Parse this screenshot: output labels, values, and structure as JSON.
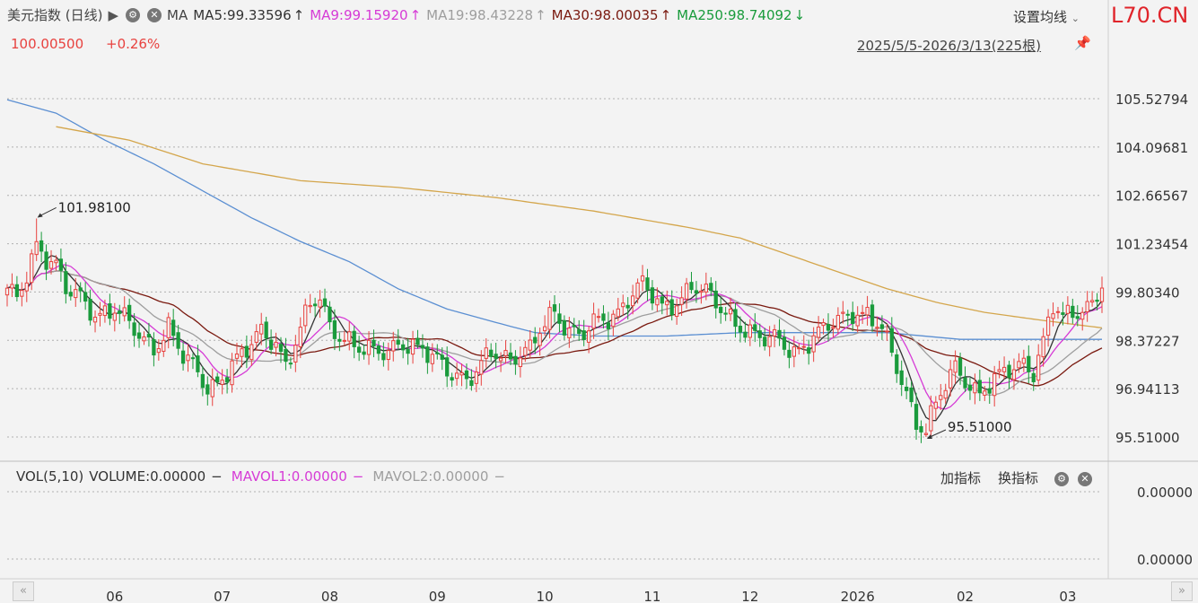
{
  "header": {
    "instrument": "美元指数 (日线)",
    "play_glyph": "▶",
    "ma_label": "MA",
    "ma5": "MA5:99.33596",
    "ma9": "MA9:99.15920",
    "ma19": "MA19:98.43228",
    "ma30": "MA30:98.00035",
    "ma250": "MA250:98.74092",
    "up_arrow": "↑",
    "down_arrow": "↓",
    "settings_label": "设置均线",
    "brand": "L70.CN",
    "last_price": "100.00500",
    "change_pct": "+0.26%",
    "date_range": "2025/5/5-2026/3/13(225根)"
  },
  "volume_panel": {
    "vol_label": "VOL(5,10)",
    "volume": "VOLUME:0.00000",
    "mavol1": "MAVOL1:0.00000",
    "mavol2": "MAVOL2:0.00000",
    "dash": "−",
    "add_indicator": "加指标",
    "switch_indicator": "换指标",
    "axis_labels": [
      "0.00000",
      "0.00000"
    ]
  },
  "colors": {
    "up": "#e8423f",
    "down": "#1a9b3c",
    "ma5": "#333333",
    "ma9": "#d63bd6",
    "ma19": "#9e9e9e",
    "ma30": "#7a1a10",
    "ma120": "#5b8fd2",
    "ma250": "#d4a64c",
    "brand": "#e0242a",
    "grid": "#b0b0b0"
  },
  "chart_data": {
    "type": "candlestick",
    "y_ticks": [
      105.52794,
      104.09681,
      102.66567,
      101.23454,
      99.8034,
      98.37227,
      96.94113,
      95.51
    ],
    "y_tick_labels": [
      "105.52794",
      "104.09681",
      "102.66567",
      "101.23454",
      "99.80340",
      "98.37227",
      "96.94113",
      "95.51000"
    ],
    "ylim": [
      95.51,
      105.52794
    ],
    "x_tick_labels": [
      "06",
      "07",
      "08",
      "09",
      "10",
      "11",
      "12",
      "2026",
      "02",
      "03"
    ],
    "x_tick_bar_index": [
      22,
      44,
      66,
      88,
      110,
      132,
      152,
      174,
      196,
      217
    ],
    "bar_count": 225,
    "annotations": [
      {
        "label": "101.98100",
        "bar": 6,
        "value": 101.981
      },
      {
        "label": "95.51000",
        "bar": 188,
        "value": 95.51
      }
    ],
    "anchors": [
      [
        0,
        99.8
      ],
      [
        2,
        99.5
      ],
      [
        4,
        100.3
      ],
      [
        6,
        101.3
      ],
      [
        8,
        100.9
      ],
      [
        10,
        100.6
      ],
      [
        12,
        99.8
      ],
      [
        15,
        99.6
      ],
      [
        18,
        99.2
      ],
      [
        22,
        99.3
      ],
      [
        26,
        98.6
      ],
      [
        30,
        98.2
      ],
      [
        33,
        98.8
      ],
      [
        36,
        97.8
      ],
      [
        39,
        97.4
      ],
      [
        41,
        97.0
      ],
      [
        43,
        97.2
      ],
      [
        46,
        97.6
      ],
      [
        49,
        98.0
      ],
      [
        52,
        98.7
      ],
      [
        55,
        98.4
      ],
      [
        57,
        97.6
      ],
      [
        59,
        98.2
      ],
      [
        62,
        99.4
      ],
      [
        64,
        99.7
      ],
      [
        66,
        98.9
      ],
      [
        69,
        98.4
      ],
      [
        72,
        98.0
      ],
      [
        76,
        98.1
      ],
      [
        80,
        98.3
      ],
      [
        84,
        98.0
      ],
      [
        88,
        97.9
      ],
      [
        91,
        97.5
      ],
      [
        94,
        97.1
      ],
      [
        96,
        97.3
      ],
      [
        99,
        98.1
      ],
      [
        103,
        97.9
      ],
      [
        107,
        98.0
      ],
      [
        109,
        98.6
      ],
      [
        112,
        99.3
      ],
      [
        115,
        98.7
      ],
      [
        118,
        98.5
      ],
      [
        121,
        98.9
      ],
      [
        124,
        99.1
      ],
      [
        127,
        99.7
      ],
      [
        130,
        100.0
      ],
      [
        132,
        99.6
      ],
      [
        134,
        99.3
      ],
      [
        137,
        99.6
      ],
      [
        140,
        100.0
      ],
      [
        143,
        99.7
      ],
      [
        146,
        99.3
      ],
      [
        149,
        99.0
      ],
      [
        152,
        98.6
      ],
      [
        155,
        98.3
      ],
      [
        158,
        98.4
      ],
      [
        161,
        98.1
      ],
      [
        164,
        98.3
      ],
      [
        167,
        98.6
      ],
      [
        170,
        99.0
      ],
      [
        173,
        99.3
      ],
      [
        176,
        99.1
      ],
      [
        179,
        98.6
      ],
      [
        182,
        97.6
      ],
      [
        184,
        96.9
      ],
      [
        186,
        96.0
      ],
      [
        188,
        95.7
      ],
      [
        190,
        96.4
      ],
      [
        192,
        97.0
      ],
      [
        194,
        97.6
      ],
      [
        196,
        97.3
      ],
      [
        199,
        96.8
      ],
      [
        202,
        97.1
      ],
      [
        205,
        97.5
      ],
      [
        208,
        97.8
      ],
      [
        210,
        97.5
      ],
      [
        212,
        98.3
      ],
      [
        214,
        99.3
      ],
      [
        216,
        99.0
      ],
      [
        218,
        99.2
      ],
      [
        220,
        99.4
      ],
      [
        222,
        99.5
      ],
      [
        224,
        100.0
      ]
    ],
    "ma120_anchors": [
      [
        0,
        105.5
      ],
      [
        10,
        105.1
      ],
      [
        20,
        104.3
      ],
      [
        30,
        103.6
      ],
      [
        40,
        102.8
      ],
      [
        50,
        102.0
      ],
      [
        60,
        101.3
      ],
      [
        70,
        100.7
      ],
      [
        80,
        99.9
      ],
      [
        90,
        99.3
      ],
      [
        100,
        98.9
      ],
      [
        108,
        98.6
      ],
      [
        120,
        98.5
      ],
      [
        135,
        98.5
      ],
      [
        150,
        98.6
      ],
      [
        165,
        98.6
      ],
      [
        180,
        98.6
      ],
      [
        195,
        98.4
      ],
      [
        210,
        98.4
      ],
      [
        224,
        98.4
      ]
    ],
    "ma250_anchors": [
      [
        10,
        104.7
      ],
      [
        25,
        104.3
      ],
      [
        40,
        103.6
      ],
      [
        60,
        103.1
      ],
      [
        80,
        102.9
      ],
      [
        100,
        102.6
      ],
      [
        120,
        102.2
      ],
      [
        140,
        101.7
      ],
      [
        150,
        101.4
      ],
      [
        160,
        100.9
      ],
      [
        170,
        100.4
      ],
      [
        180,
        99.9
      ],
      [
        190,
        99.5
      ],
      [
        200,
        99.2
      ],
      [
        210,
        99.0
      ],
      [
        224,
        98.74
      ]
    ]
  }
}
